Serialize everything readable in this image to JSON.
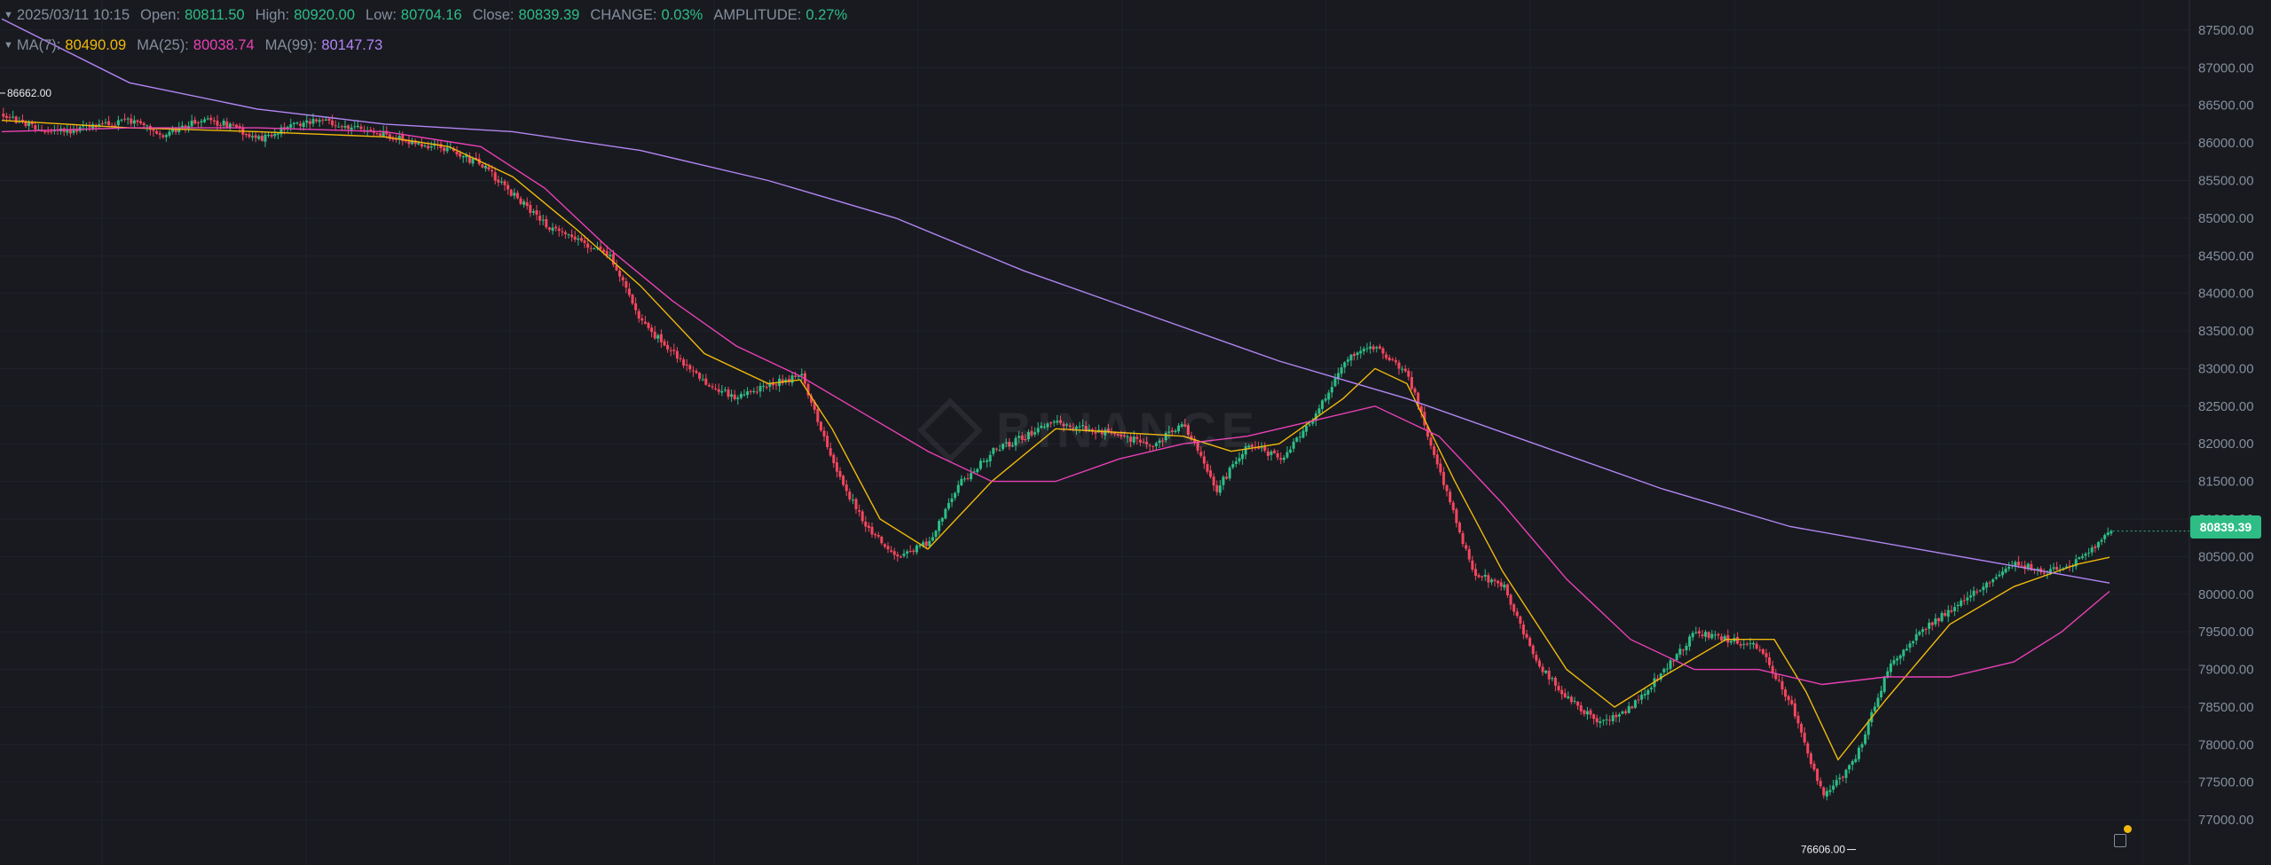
{
  "ohlc_header": {
    "datetime": "2025/03/11 10:15",
    "open_label": "Open:",
    "open": "80811.50",
    "high_label": "High:",
    "high": "80920.00",
    "low_label": "Low:",
    "low": "80704.16",
    "close_label": "Close:",
    "close": "80839.39",
    "change_label": "CHANGE:",
    "change": "0.03%",
    "amplitude_label": "AMPLITUDE:",
    "amplitude": "0.27%"
  },
  "ma_header": {
    "ma7_label": "MA(7):",
    "ma7": "80490.09",
    "ma25_label": "MA(25):",
    "ma25": "80038.74",
    "ma99_label": "MA(99):",
    "ma99": "80147.73"
  },
  "watermark": "BINANCE",
  "colors": {
    "background": "#181a20",
    "up": "#2ebd85",
    "down": "#f6465d",
    "ma7": "#f0b90b",
    "ma25": "#eb40b5",
    "ma99": "#b385f3",
    "axis_text": "#848e9c"
  },
  "chart_data": {
    "type": "candlestick",
    "grid": true,
    "price_axis": {
      "position": "right",
      "ylim": [
        76400,
        87900
      ],
      "ticks": [
        "87500.00",
        "87000.00",
        "86500.00",
        "86000.00",
        "85500.00",
        "85000.00",
        "84500.00",
        "84000.00",
        "83500.00",
        "83000.00",
        "82500.00",
        "82000.00",
        "81500.00",
        "81000.00",
        "80500.00",
        "80000.00",
        "79500.00",
        "79000.00",
        "78500.00",
        "78000.00",
        "77500.00",
        "77000.00"
      ]
    },
    "last_price_label": "80839.39",
    "max_label": "86662.00",
    "min_label": "76606.00",
    "close_path": [
      [
        0,
        86350
      ],
      [
        10,
        86200
      ],
      [
        20,
        86150
      ],
      [
        30,
        86250
      ],
      [
        40,
        86300
      ],
      [
        50,
        86100
      ],
      [
        60,
        86300
      ],
      [
        70,
        86250
      ],
      [
        80,
        86050
      ],
      [
        90,
        86250
      ],
      [
        100,
        86300
      ],
      [
        110,
        86200
      ],
      [
        120,
        86100
      ],
      [
        130,
        86000
      ],
      [
        140,
        85900
      ],
      [
        150,
        85700
      ],
      [
        160,
        85300
      ],
      [
        170,
        84900
      ],
      [
        180,
        84700
      ],
      [
        190,
        84500
      ],
      [
        200,
        83600
      ],
      [
        210,
        83200
      ],
      [
        220,
        82800
      ],
      [
        230,
        82600
      ],
      [
        240,
        82800
      ],
      [
        250,
        82900
      ],
      [
        260,
        81700
      ],
      [
        270,
        80900
      ],
      [
        280,
        80500
      ],
      [
        290,
        80700
      ],
      [
        300,
        81500
      ],
      [
        310,
        81900
      ],
      [
        320,
        82100
      ],
      [
        330,
        82300
      ],
      [
        340,
        82200
      ],
      [
        350,
        82100
      ],
      [
        360,
        82000
      ],
      [
        370,
        82250
      ],
      [
        380,
        81400
      ],
      [
        390,
        82000
      ],
      [
        400,
        81800
      ],
      [
        410,
        82300
      ],
      [
        420,
        83100
      ],
      [
        430,
        83300
      ],
      [
        440,
        82900
      ],
      [
        450,
        81600
      ],
      [
        460,
        80300
      ],
      [
        470,
        80100
      ],
      [
        480,
        79100
      ],
      [
        490,
        78600
      ],
      [
        500,
        78300
      ],
      [
        510,
        78500
      ],
      [
        520,
        79000
      ],
      [
        530,
        79500
      ],
      [
        540,
        79400
      ],
      [
        550,
        79300
      ],
      [
        560,
        78500
      ],
      [
        570,
        77300
      ],
      [
        580,
        77800
      ],
      [
        590,
        79000
      ],
      [
        600,
        79500
      ],
      [
        610,
        79800
      ],
      [
        620,
        80100
      ],
      [
        630,
        80400
      ],
      [
        640,
        80300
      ],
      [
        650,
        80450
      ],
      [
        660,
        80839
      ]
    ],
    "ma_series": [
      {
        "name": "MA(7)",
        "color": "#f0b90b",
        "points": [
          [
            0,
            86300
          ],
          [
            40,
            86200
          ],
          [
            80,
            86150
          ],
          [
            120,
            86080
          ],
          [
            140,
            85950
          ],
          [
            160,
            85550
          ],
          [
            180,
            84850
          ],
          [
            200,
            84100
          ],
          [
            220,
            83200
          ],
          [
            240,
            82800
          ],
          [
            250,
            82850
          ],
          [
            260,
            82200
          ],
          [
            275,
            81000
          ],
          [
            290,
            80600
          ],
          [
            310,
            81500
          ],
          [
            330,
            82200
          ],
          [
            350,
            82150
          ],
          [
            370,
            82100
          ],
          [
            385,
            81900
          ],
          [
            400,
            82000
          ],
          [
            420,
            82600
          ],
          [
            430,
            83000
          ],
          [
            440,
            82800
          ],
          [
            455,
            81500
          ],
          [
            470,
            80300
          ],
          [
            490,
            79000
          ],
          [
            505,
            78500
          ],
          [
            520,
            78900
          ],
          [
            540,
            79400
          ],
          [
            555,
            79400
          ],
          [
            565,
            78700
          ],
          [
            575,
            77800
          ],
          [
            590,
            78600
          ],
          [
            610,
            79600
          ],
          [
            630,
            80100
          ],
          [
            650,
            80400
          ],
          [
            660,
            80490
          ]
        ]
      },
      {
        "name": "MA(25)",
        "color": "#eb40b5",
        "points": [
          [
            0,
            86150
          ],
          [
            40,
            86200
          ],
          [
            80,
            86200
          ],
          [
            120,
            86150
          ],
          [
            150,
            85950
          ],
          [
            170,
            85400
          ],
          [
            190,
            84600
          ],
          [
            210,
            83900
          ],
          [
            230,
            83300
          ],
          [
            250,
            82900
          ],
          [
            270,
            82400
          ],
          [
            290,
            81900
          ],
          [
            310,
            81500
          ],
          [
            330,
            81500
          ],
          [
            350,
            81800
          ],
          [
            370,
            82000
          ],
          [
            390,
            82100
          ],
          [
            410,
            82300
          ],
          [
            430,
            82500
          ],
          [
            450,
            82100
          ],
          [
            470,
            81200
          ],
          [
            490,
            80200
          ],
          [
            510,
            79400
          ],
          [
            530,
            79000
          ],
          [
            550,
            79000
          ],
          [
            570,
            78800
          ],
          [
            590,
            78900
          ],
          [
            610,
            78900
          ],
          [
            630,
            79100
          ],
          [
            645,
            79500
          ],
          [
            660,
            80039
          ]
        ]
      },
      {
        "name": "MA(99)",
        "color": "#b385f3",
        "points": [
          [
            0,
            87650
          ],
          [
            40,
            86800
          ],
          [
            80,
            86450
          ],
          [
            120,
            86250
          ],
          [
            160,
            86150
          ],
          [
            200,
            85900
          ],
          [
            240,
            85500
          ],
          [
            280,
            85000
          ],
          [
            320,
            84300
          ],
          [
            360,
            83700
          ],
          [
            400,
            83100
          ],
          [
            440,
            82600
          ],
          [
            480,
            82000
          ],
          [
            520,
            81400
          ],
          [
            560,
            80900
          ],
          [
            600,
            80600
          ],
          [
            640,
            80300
          ],
          [
            660,
            80148
          ]
        ]
      }
    ]
  }
}
